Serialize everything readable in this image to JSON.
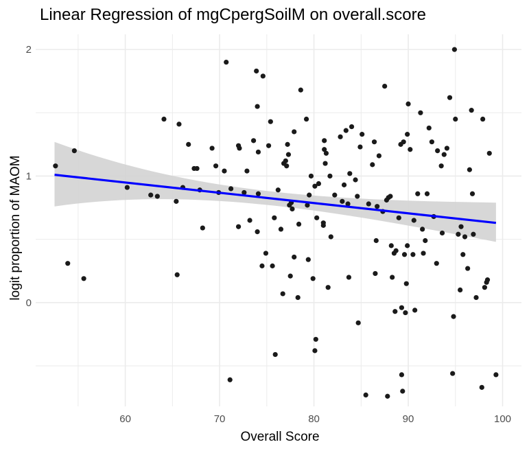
{
  "chart_data": {
    "type": "scatter",
    "title": "Linear Regression of mgCpergSoilM on overall.score",
    "xlabel": "Overall Score",
    "ylabel": "logit proportion of MAOM",
    "xlim": [
      50.5,
      102
    ],
    "ylim": [
      -0.82,
      2.12
    ],
    "x_ticks": [
      60,
      70,
      80,
      90,
      100
    ],
    "y_ticks": [
      0,
      1,
      2
    ],
    "grid": true,
    "legend": "none",
    "colors": {
      "points": "#1a1a1a",
      "fit_line": "#0000ff",
      "confidence_band": "#d3d3d3",
      "grid": "#ebebeb"
    },
    "fit_line": {
      "x": [
        52.5,
        99.3
      ],
      "y": [
        1.01,
        0.63
      ]
    },
    "confidence_band": {
      "x": [
        52.5,
        99.3
      ],
      "upper": [
        1.27,
        0.79
      ],
      "lower": [
        0.76,
        0.48
      ]
    },
    "points": [
      [
        52.6,
        1.08
      ],
      [
        53.9,
        0.31
      ],
      [
        54.6,
        1.2
      ],
      [
        55.6,
        0.19
      ],
      [
        60.2,
        0.91
      ],
      [
        62.7,
        0.85
      ],
      [
        63.4,
        0.84
      ],
      [
        64.1,
        1.45
      ],
      [
        65.4,
        0.8
      ],
      [
        65.5,
        0.22
      ],
      [
        65.7,
        1.41
      ],
      [
        66.1,
        0.91
      ],
      [
        66.7,
        1.25
      ],
      [
        67.3,
        1.06
      ],
      [
        67.6,
        1.06
      ],
      [
        67.9,
        0.89
      ],
      [
        68.2,
        0.59
      ],
      [
        69.2,
        1.22
      ],
      [
        69.6,
        1.08
      ],
      [
        69.9,
        0.87
      ],
      [
        70.5,
        1.04
      ],
      [
        70.7,
        1.9
      ],
      [
        71.1,
        -0.61
      ],
      [
        71.2,
        0.9
      ],
      [
        72.0,
        1.24
      ],
      [
        72.1,
        1.22
      ],
      [
        72.0,
        0.6
      ],
      [
        72.6,
        0.87
      ],
      [
        72.9,
        1.04
      ],
      [
        73.2,
        0.65
      ],
      [
        73.6,
        1.28
      ],
      [
        73.9,
        1.83
      ],
      [
        74.0,
        1.55
      ],
      [
        74.0,
        0.56
      ],
      [
        74.1,
        0.86
      ],
      [
        74.1,
        1.19
      ],
      [
        74.5,
        0.29
      ],
      [
        74.6,
        1.79
      ],
      [
        74.9,
        0.39
      ],
      [
        75.2,
        1.24
      ],
      [
        75.4,
        1.43
      ],
      [
        75.6,
        0.29
      ],
      [
        75.8,
        0.67
      ],
      [
        75.9,
        -0.41
      ],
      [
        76.2,
        0.89
      ],
      [
        76.5,
        0.58
      ],
      [
        76.7,
        0.07
      ],
      [
        76.8,
        1.1
      ],
      [
        77.0,
        1.12
      ],
      [
        77.1,
        1.08
      ],
      [
        77.2,
        1.25
      ],
      [
        77.3,
        1.17
      ],
      [
        77.4,
        0.77
      ],
      [
        77.5,
        0.21
      ],
      [
        77.6,
        0.79
      ],
      [
        77.7,
        0.74
      ],
      [
        77.9,
        1.35
      ],
      [
        77.9,
        0.36
      ],
      [
        78.3,
        0.04
      ],
      [
        78.4,
        0.62
      ],
      [
        78.6,
        1.68
      ],
      [
        79.2,
        1.45
      ],
      [
        79.3,
        0.77
      ],
      [
        79.4,
        0.34
      ],
      [
        79.5,
        0.85
      ],
      [
        79.7,
        1.0
      ],
      [
        79.9,
        0.19
      ],
      [
        80.1,
        0.92
      ],
      [
        80.2,
        -0.29
      ],
      [
        80.1,
        -0.38
      ],
      [
        80.3,
        0.67
      ],
      [
        80.5,
        0.94
      ],
      [
        81.0,
        0.63
      ],
      [
        81.0,
        0.61
      ],
      [
        81.1,
        1.28
      ],
      [
        81.1,
        1.21
      ],
      [
        81.2,
        1.1
      ],
      [
        81.3,
        1.18
      ],
      [
        81.5,
        0.12
      ],
      [
        81.7,
        1.0
      ],
      [
        81.8,
        0.52
      ],
      [
        82.2,
        0.85
      ],
      [
        82.8,
        1.31
      ],
      [
        83.0,
        0.8
      ],
      [
        83.2,
        0.93
      ],
      [
        83.4,
        1.36
      ],
      [
        83.6,
        0.78
      ],
      [
        83.7,
        0.2
      ],
      [
        83.8,
        1.02
      ],
      [
        84.0,
        1.39
      ],
      [
        84.4,
        0.97
      ],
      [
        84.6,
        0.84
      ],
      [
        84.7,
        -0.16
      ],
      [
        84.9,
        1.23
      ],
      [
        85.1,
        1.33
      ],
      [
        85.5,
        -0.73
      ],
      [
        85.8,
        0.78
      ],
      [
        86.2,
        1.09
      ],
      [
        86.4,
        1.27
      ],
      [
        86.5,
        0.23
      ],
      [
        86.6,
        0.49
      ],
      [
        86.7,
        0.76
      ],
      [
        86.9,
        1.16
      ],
      [
        87.3,
        0.72
      ],
      [
        87.5,
        1.71
      ],
      [
        87.7,
        0.81
      ],
      [
        87.8,
        -0.74
      ],
      [
        87.9,
        0.83
      ],
      [
        88.1,
        0.84
      ],
      [
        88.2,
        0.45
      ],
      [
        88.3,
        0.2
      ],
      [
        88.5,
        0.39
      ],
      [
        88.6,
        -0.07
      ],
      [
        88.7,
        0.41
      ],
      [
        89.0,
        0.67
      ],
      [
        89.2,
        1.25
      ],
      [
        89.3,
        -0.04
      ],
      [
        89.3,
        -0.57
      ],
      [
        89.4,
        -0.7
      ],
      [
        89.5,
        1.27
      ],
      [
        89.6,
        0.38
      ],
      [
        89.7,
        -0.08
      ],
      [
        89.8,
        0.15
      ],
      [
        89.9,
        1.33
      ],
      [
        90.0,
        1.57
      ],
      [
        90.2,
        1.21
      ],
      [
        90.5,
        0.38
      ],
      [
        90.6,
        0.65
      ],
      [
        90.7,
        -0.06
      ],
      [
        91.0,
        0.86
      ],
      [
        91.3,
        1.5
      ],
      [
        91.5,
        0.58
      ],
      [
        91.6,
        0.39
      ],
      [
        91.8,
        0.49
      ],
      [
        92.0,
        0.86
      ],
      [
        92.2,
        1.38
      ],
      [
        92.5,
        1.27
      ],
      [
        92.7,
        0.68
      ],
      [
        93.0,
        0.31
      ],
      [
        93.1,
        1.2
      ],
      [
        93.5,
        1.08
      ],
      [
        93.6,
        0.55
      ],
      [
        93.8,
        1.17
      ],
      [
        94.1,
        1.22
      ],
      [
        94.4,
        1.62
      ],
      [
        94.7,
        -0.56
      ],
      [
        94.8,
        -0.11
      ],
      [
        94.9,
        2.0
      ],
      [
        95.0,
        1.45
      ],
      [
        95.3,
        0.54
      ],
      [
        95.5,
        0.1
      ],
      [
        95.6,
        0.6
      ],
      [
        95.8,
        0.38
      ],
      [
        96.0,
        0.52
      ],
      [
        96.3,
        0.27
      ],
      [
        96.7,
        1.52
      ],
      [
        96.8,
        0.86
      ],
      [
        96.9,
        0.54
      ],
      [
        97.2,
        0.04
      ],
      [
        97.9,
        1.45
      ],
      [
        97.8,
        -0.67
      ],
      [
        98.1,
        0.12
      ],
      [
        98.3,
        0.16
      ],
      [
        98.4,
        0.18
      ],
      [
        98.6,
        1.18
      ],
      [
        99.3,
        -0.57
      ],
      [
        96.5,
        1.05
      ],
      [
        89.9,
        0.45
      ]
    ]
  }
}
